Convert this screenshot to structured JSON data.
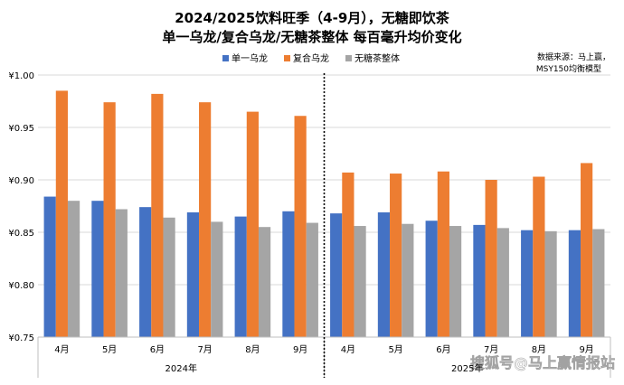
{
  "title_line1": "2024/2025饮料旺季（4-9月），无糖即饮茶",
  "title_line2": "单一乌龙/复合乌龙/无糖茶整体  每百毫升均价变化",
  "source_line1": "数据来源：马上赢，",
  "source_line2": "MSY150均衡模型",
  "watermark": "搜狐号@马上赢情报站",
  "colors": {
    "single_oolong": "#4472C4",
    "compound_oolong": "#ED7D31",
    "overall": "#A5A5A5"
  },
  "chart_data": {
    "type": "bar",
    "ylim": [
      0.75,
      1.0
    ],
    "yticks": [
      "¥0.75",
      "¥0.80",
      "¥0.85",
      "¥0.90",
      "¥0.95",
      "¥1.00"
    ],
    "ytick_values": [
      0.75,
      0.8,
      0.85,
      0.9,
      0.95,
      1.0
    ],
    "categories": [
      "4月",
      "5月",
      "6月",
      "7月",
      "8月",
      "9月",
      "4月",
      "5月",
      "6月",
      "7月",
      "8月",
      "9月"
    ],
    "groups": [
      {
        "label": "2024年",
        "count": 6
      },
      {
        "label": "2025年",
        "count": 6
      }
    ],
    "legend_position": "top",
    "grid": true,
    "series": [
      {
        "name": "单一乌龙",
        "values": [
          0.884,
          0.88,
          0.874,
          0.869,
          0.865,
          0.87,
          0.868,
          0.869,
          0.861,
          0.857,
          0.852,
          0.852
        ]
      },
      {
        "name": "复合乌龙",
        "values": [
          0.985,
          0.974,
          0.982,
          0.974,
          0.965,
          0.961,
          0.907,
          0.906,
          0.908,
          0.9,
          0.903,
          0.916
        ]
      },
      {
        "name": "无糖茶整体",
        "values": [
          0.88,
          0.872,
          0.864,
          0.86,
          0.855,
          0.859,
          0.856,
          0.858,
          0.856,
          0.854,
          0.851,
          0.853
        ]
      }
    ]
  }
}
